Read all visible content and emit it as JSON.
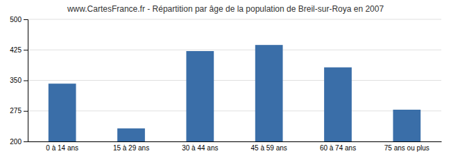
{
  "chart_data": {
    "type": "bar",
    "title": "www.CartesFrance.fr - Répartition par âge de la population de Breil-sur-Roya en 2007",
    "categories": [
      "0 à 14 ans",
      "15 à 29 ans",
      "30 à 44 ans",
      "45 à 59 ans",
      "60 à 74 ans",
      "75 ans ou plus"
    ],
    "values": [
      342,
      232,
      422,
      437,
      382,
      278
    ],
    "color": "#3a6ea8",
    "ylim": [
      200,
      500
    ],
    "yticks": [
      200,
      275,
      350,
      425,
      500
    ],
    "grid": true
  }
}
